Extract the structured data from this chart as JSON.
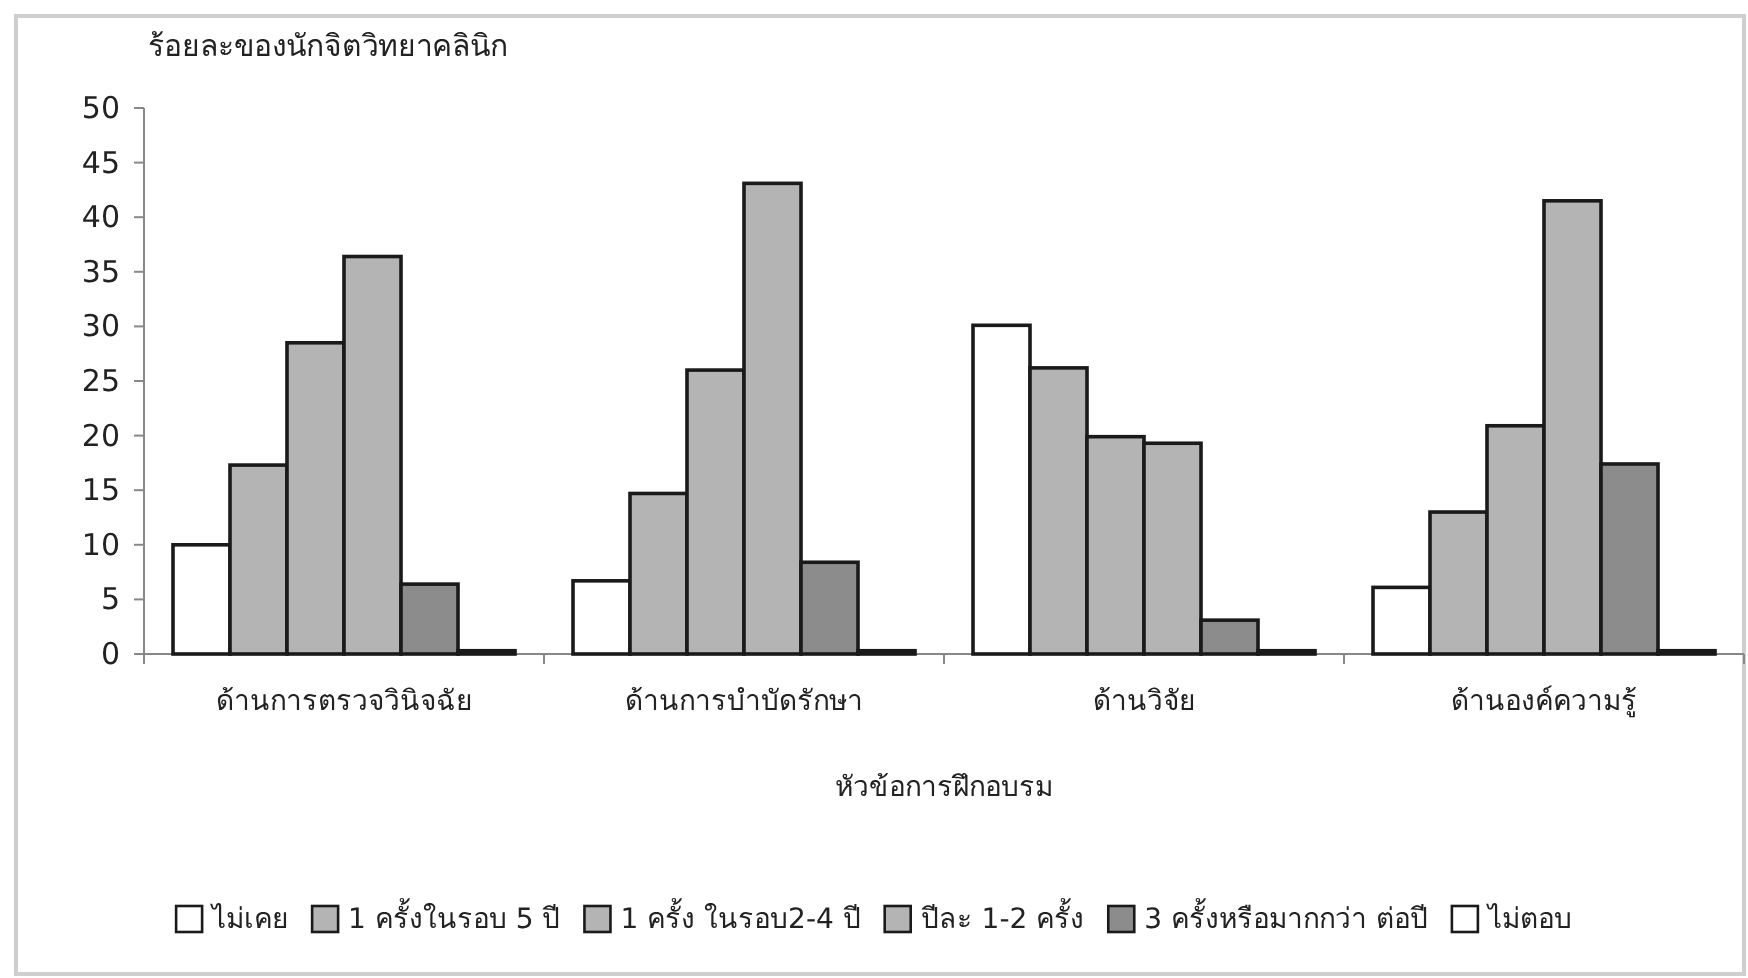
{
  "chart_data": {
    "type": "bar",
    "ylabel": "ร้อยละของนักจิตวิทยาคลินิก",
    "xlabel": "หัวข้อการฝึกอบรม",
    "categories": [
      "ด้านการตรวจวินิจฉัย",
      "ด้านการบำบัดรักษา",
      "ด้านวิจัย",
      "ด้านองค์ความรู้"
    ],
    "series": [
      {
        "name": "ไม่เคย",
        "color": "#ffffff",
        "values": [
          10,
          6.7,
          30.1,
          6.1
        ]
      },
      {
        "name": "1 ครั้งในรอบ 5 ปี",
        "color": "#b4b4b4",
        "values": [
          17.3,
          14.7,
          26.2,
          13
        ]
      },
      {
        "name": "1 ครั้ง ในรอบ2-4 ปี",
        "color": "#b4b4b4",
        "values": [
          28.5,
          26,
          19.9,
          20.9
        ]
      },
      {
        "name": "ปีละ 1-2 ครั้ง",
        "color": "#b4b4b4",
        "values": [
          36.4,
          43.1,
          19.3,
          41.5
        ]
      },
      {
        "name": "3 ครั้งหรือมากกว่า ต่อปี",
        "color": "#8c8c8c",
        "values": [
          6.4,
          8.4,
          3.1,
          17.4
        ]
      },
      {
        "name": "ไม่ตอบ",
        "color": "#ffffff",
        "values": [
          0.3,
          0.3,
          0.3,
          0.3
        ]
      }
    ],
    "ylim": [
      0,
      50
    ],
    "yticks": [
      0,
      5,
      10,
      15,
      20,
      25,
      30,
      35,
      40,
      45,
      50
    ],
    "grid": false,
    "legend": "bottom"
  }
}
